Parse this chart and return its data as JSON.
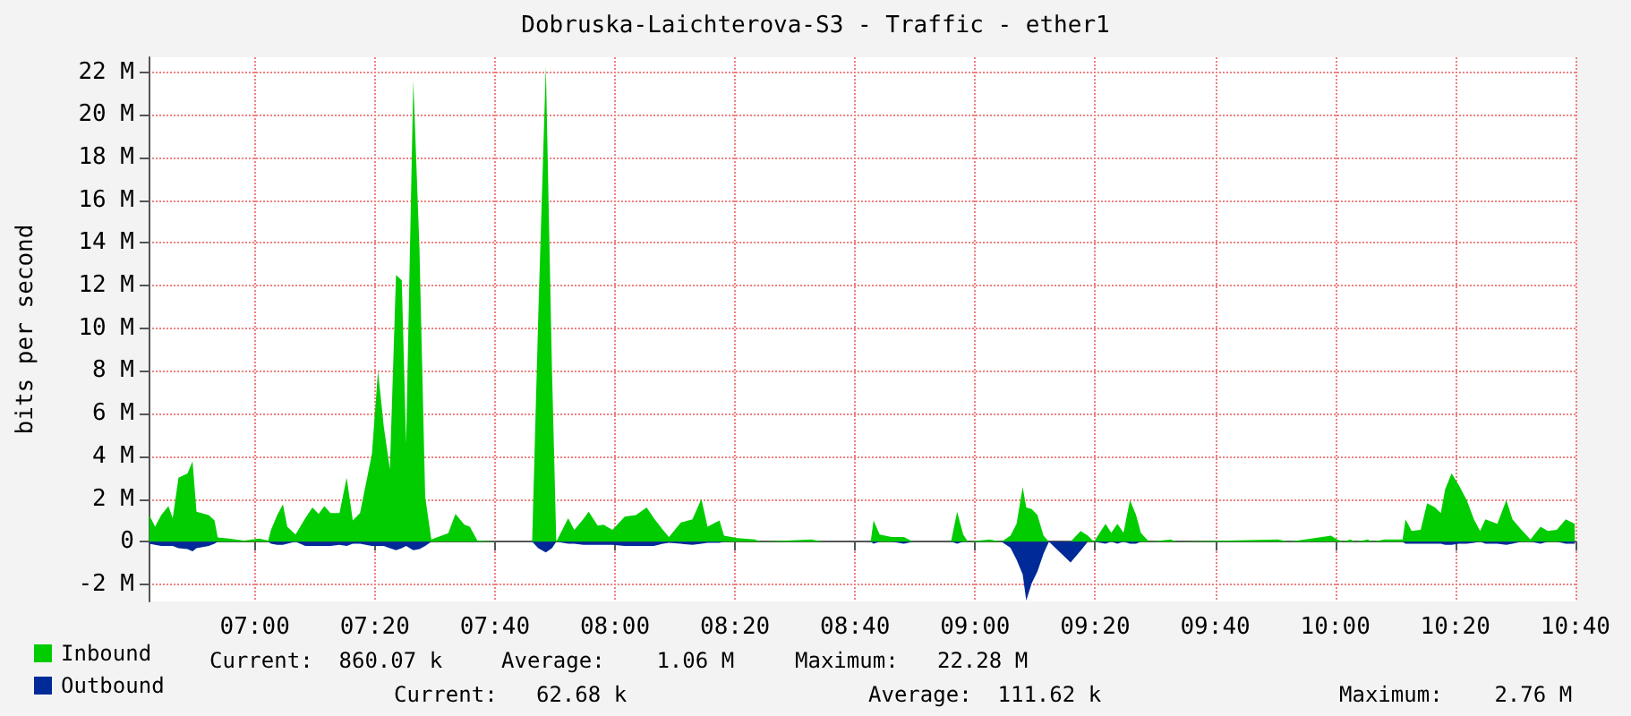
{
  "chart_data": {
    "type": "area",
    "title": "Dobruska-Laichterova-S3 - Traffic - ether1",
    "ylabel": "bits per second",
    "x": [
      6.707,
      6.723,
      6.74,
      6.76,
      6.772,
      6.788,
      6.813,
      6.827,
      6.838,
      6.872,
      6.888,
      6.897,
      6.928,
      6.97,
      7.012,
      7.037,
      7.045,
      7.062,
      7.078,
      7.09,
      7.113,
      7.14,
      7.16,
      7.177,
      7.193,
      7.21,
      7.235,
      7.255,
      7.272,
      7.292,
      7.325,
      7.342,
      7.358,
      7.375,
      7.392,
      7.408,
      7.42,
      7.44,
      7.457,
      7.473,
      7.49,
      7.537,
      7.557,
      7.582,
      7.597,
      7.618,
      7.672,
      7.77,
      7.787,
      7.808,
      7.825,
      7.837,
      7.87,
      7.887,
      7.912,
      7.927,
      7.952,
      7.968,
      7.993,
      8.027,
      8.058,
      8.088,
      8.108,
      8.133,
      8.15,
      8.183,
      8.215,
      8.24,
      8.257,
      8.29,
      8.303,
      8.34,
      8.388,
      8.405,
      8.545,
      8.578,
      8.71,
      8.718,
      8.735,
      8.768,
      8.802,
      8.827,
      8.933,
      8.95,
      8.967,
      8.98,
      9.04,
      9.073,
      9.098,
      9.115,
      9.132,
      9.142,
      9.157,
      9.173,
      9.19,
      9.205,
      9.265,
      9.293,
      9.313,
      9.33,
      9.362,
      9.378,
      9.395,
      9.412,
      9.43,
      9.447,
      9.46,
      9.477,
      9.485,
      9.543,
      9.56,
      9.84,
      9.873,
      9.963,
      9.988,
      10.005,
      10.022,
      10.042,
      10.055,
      10.09,
      10.103,
      10.137,
      10.187,
      10.195,
      10.212,
      10.237,
      10.255,
      10.277,
      10.293,
      10.305,
      10.323,
      10.343,
      10.365,
      10.385,
      10.402,
      10.417,
      10.45,
      10.475,
      10.492,
      10.517,
      10.542,
      10.57,
      10.59,
      10.615,
      10.64,
      10.665
    ],
    "series": [
      {
        "name": "Inbound",
        "color": "#00cc00",
        "values": [
          1.25,
          0.7,
          1.25,
          1.67,
          1.1,
          3.0,
          3.2,
          3.76,
          1.4,
          1.25,
          1.0,
          0.2,
          0.15,
          0.05,
          0.15,
          0.05,
          0.56,
          1.25,
          1.75,
          0.7,
          0.33,
          1.1,
          1.6,
          1.3,
          1.67,
          1.34,
          1.34,
          3.0,
          1.0,
          1.34,
          4.1,
          8.0,
          5.4,
          3.4,
          12.5,
          12.25,
          4.6,
          21.6,
          13.8,
          2.1,
          0.1,
          0.4,
          1.3,
          0.8,
          0.7,
          0.05,
          0,
          0,
          10.6,
          22.28,
          8.1,
          0,
          1.1,
          0.56,
          1.06,
          1.4,
          0.75,
          0.8,
          0.56,
          1.17,
          1.25,
          1.6,
          1.1,
          0.56,
          0.22,
          0.9,
          1.05,
          2.0,
          0.7,
          1.0,
          0.28,
          0.17,
          0.1,
          0,
          0.1,
          0,
          0,
          1.0,
          0.33,
          0.22,
          0.22,
          0,
          0,
          1.4,
          0.33,
          0,
          0.1,
          0,
          0.28,
          0.84,
          2.56,
          1.6,
          1.53,
          1.25,
          0.28,
          0,
          0,
          0.5,
          0.28,
          0,
          0.84,
          0.42,
          0.84,
          0.42,
          1.95,
          1.25,
          0.42,
          0.1,
          0,
          0.1,
          0,
          0.1,
          0,
          0.22,
          0.28,
          0.1,
          0,
          0.1,
          0,
          0.1,
          0,
          0.1,
          0.1,
          1.05,
          0.5,
          0.56,
          1.8,
          1.6,
          1.34,
          2.45,
          3.2,
          2.65,
          1.95,
          1.05,
          0.5,
          1.05,
          0.84,
          1.95,
          1.05,
          0.56,
          0.1,
          0.7,
          0.5,
          0.56,
          1.05,
          0.84
        ]
      },
      {
        "name": "Outbound",
        "color": "#002a97",
        "values": [
          -0.1,
          -0.15,
          -0.2,
          -0.2,
          -0.2,
          -0.3,
          -0.35,
          -0.45,
          -0.3,
          -0.2,
          -0.1,
          0,
          0,
          0,
          0,
          0,
          -0.1,
          -0.15,
          -0.15,
          -0.1,
          0,
          -0.2,
          -0.2,
          -0.2,
          -0.2,
          -0.2,
          -0.15,
          -0.2,
          -0.1,
          -0.1,
          -0.2,
          -0.2,
          -0.2,
          -0.3,
          -0.4,
          -0.3,
          -0.2,
          -0.4,
          -0.35,
          -0.2,
          0,
          0,
          0,
          0,
          0,
          0,
          0,
          0,
          -0.3,
          -0.5,
          -0.3,
          0,
          -0.1,
          -0.1,
          -0.15,
          -0.15,
          -0.15,
          -0.15,
          -0.15,
          -0.2,
          -0.2,
          -0.2,
          -0.2,
          -0.1,
          -0.05,
          -0.1,
          -0.15,
          -0.1,
          -0.05,
          -0.05,
          0,
          0,
          0,
          0,
          0,
          0,
          0,
          -0.1,
          0,
          0,
          -0.1,
          0,
          0,
          -0.1,
          0,
          0,
          0,
          0,
          -0.28,
          -0.84,
          -1.53,
          -2.76,
          -1.95,
          -1.4,
          -0.56,
          0,
          -0.98,
          -0.42,
          0,
          0,
          -0.1,
          0,
          -0.1,
          0,
          -0.1,
          -0.1,
          0,
          0,
          0,
          0,
          0,
          0,
          0,
          0,
          0,
          0,
          0,
          0,
          0,
          0,
          0,
          0,
          0,
          -0.1,
          -0.1,
          -0.1,
          -0.1,
          -0.1,
          -0.1,
          -0.15,
          -0.15,
          -0.1,
          -0.1,
          -0.05,
          0,
          -0.1,
          -0.1,
          -0.15,
          -0.1,
          0,
          0,
          -0.1,
          0,
          0,
          -0.1,
          -0.1
        ]
      }
    ],
    "xlim": [
      6.705,
      10.667
    ],
    "xticks": [
      {
        "value": 7,
        "label": "07:00"
      },
      {
        "value": 7.3333,
        "label": "07:20"
      },
      {
        "value": 7.6667,
        "label": "07:40"
      },
      {
        "value": 8,
        "label": "08:00"
      },
      {
        "value": 8.3333,
        "label": "08:20"
      },
      {
        "value": 8.6667,
        "label": "08:40"
      },
      {
        "value": 9,
        "label": "09:00"
      },
      {
        "value": 9.3333,
        "label": "09:20"
      },
      {
        "value": 9.6667,
        "label": "09:40"
      },
      {
        "value": 10,
        "label": "10:00"
      },
      {
        "value": 10.3333,
        "label": "10:20"
      },
      {
        "value": 10.6667,
        "label": "10:40"
      }
    ],
    "ylim": [
      -2.8,
      22.7
    ],
    "yticks": [
      {
        "value": -2,
        "label": "-2 M"
      },
      {
        "value": 0,
        "label": "0"
      },
      {
        "value": 2,
        "label": "2 M"
      },
      {
        "value": 4,
        "label": "4 M"
      },
      {
        "value": 6,
        "label": "6 M"
      },
      {
        "value": 8,
        "label": "8 M"
      },
      {
        "value": 10,
        "label": "10 M"
      },
      {
        "value": 12,
        "label": "12 M"
      },
      {
        "value": 14,
        "label": "14 M"
      },
      {
        "value": 16,
        "label": "16 M"
      },
      {
        "value": 18,
        "label": "18 M"
      },
      {
        "value": 20,
        "label": "20 M"
      },
      {
        "value": 22,
        "label": "22 M"
      }
    ],
    "grid": true,
    "legend": "bottom left",
    "annotations": [
      "Current:  860.07 k",
      "Average:    1.06 M",
      "Maximum:   22.28 M",
      "Current:   62.68 k",
      "Average:  111.62 k",
      "Maximum:    2.76 M"
    ]
  }
}
